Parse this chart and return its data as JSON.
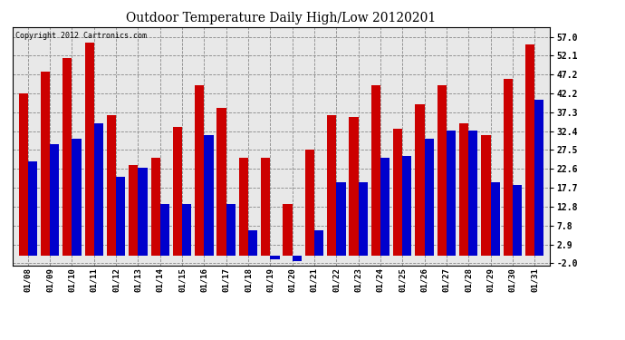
{
  "title": "Outdoor Temperature Daily High/Low 20120201",
  "copyright": "Copyright 2012 Cartronics.com",
  "dates": [
    "01/08",
    "01/09",
    "01/10",
    "01/11",
    "01/12",
    "01/13",
    "01/14",
    "01/15",
    "01/16",
    "01/17",
    "01/18",
    "01/19",
    "01/20",
    "01/21",
    "01/22",
    "01/23",
    "01/24",
    "01/25",
    "01/26",
    "01/27",
    "01/28",
    "01/29",
    "01/30",
    "01/31"
  ],
  "highs": [
    42.2,
    48.0,
    51.5,
    55.5,
    36.5,
    23.5,
    25.5,
    33.5,
    44.5,
    38.5,
    25.5,
    25.5,
    13.5,
    27.5,
    36.5,
    36.0,
    44.5,
    33.0,
    39.5,
    44.5,
    34.5,
    31.5,
    46.0,
    55.0
  ],
  "lows": [
    24.5,
    29.0,
    30.5,
    34.5,
    20.5,
    23.0,
    13.5,
    13.5,
    31.5,
    13.5,
    6.5,
    -1.0,
    -1.5,
    6.5,
    19.0,
    19.0,
    25.5,
    26.0,
    30.5,
    32.5,
    32.5,
    19.0,
    18.5,
    40.5
  ],
  "high_color": "#cc0000",
  "low_color": "#0000cc",
  "bg_color": "#ffffff",
  "plot_bg_color": "#e8e8e8",
  "grid_color": "#888888",
  "yticks": [
    -2.0,
    2.9,
    7.8,
    12.8,
    17.7,
    22.6,
    27.5,
    32.4,
    37.3,
    42.2,
    47.2,
    52.1,
    57.0
  ],
  "ymin": -2.5,
  "ymax": 59.5,
  "bar_width": 0.42
}
